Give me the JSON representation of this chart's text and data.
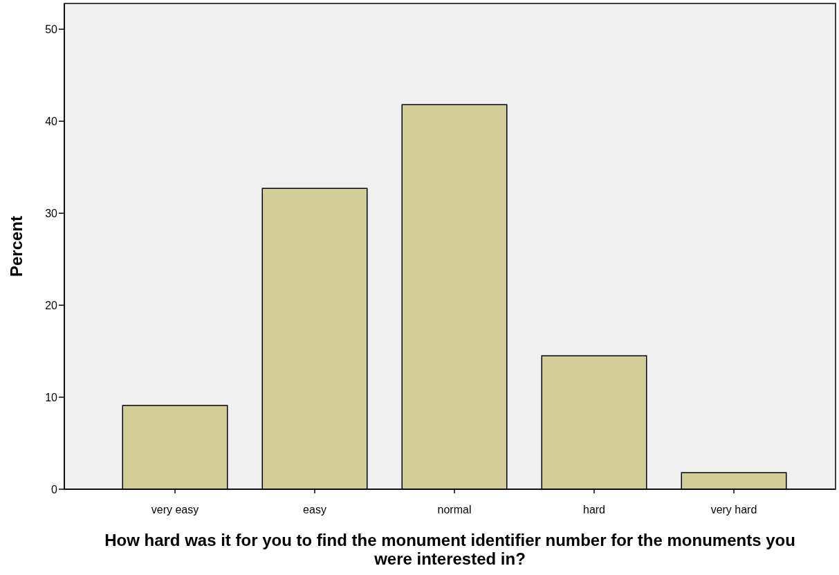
{
  "chart_data": {
    "type": "bar",
    "xlabel": "How hard was it for you to find the monument identifier number for the monuments you were interested in?",
    "ylabel": "Percent",
    "categories": [
      "very easy",
      "easy",
      "normal",
      "hard",
      "very hard"
    ],
    "values": [
      9.1,
      32.7,
      41.8,
      14.5,
      1.8
    ],
    "color": "#d3ce98",
    "ylim": [
      0,
      52.8
    ],
    "yticks": [
      0,
      10,
      20,
      30,
      40,
      50
    ],
    "grid": false
  }
}
